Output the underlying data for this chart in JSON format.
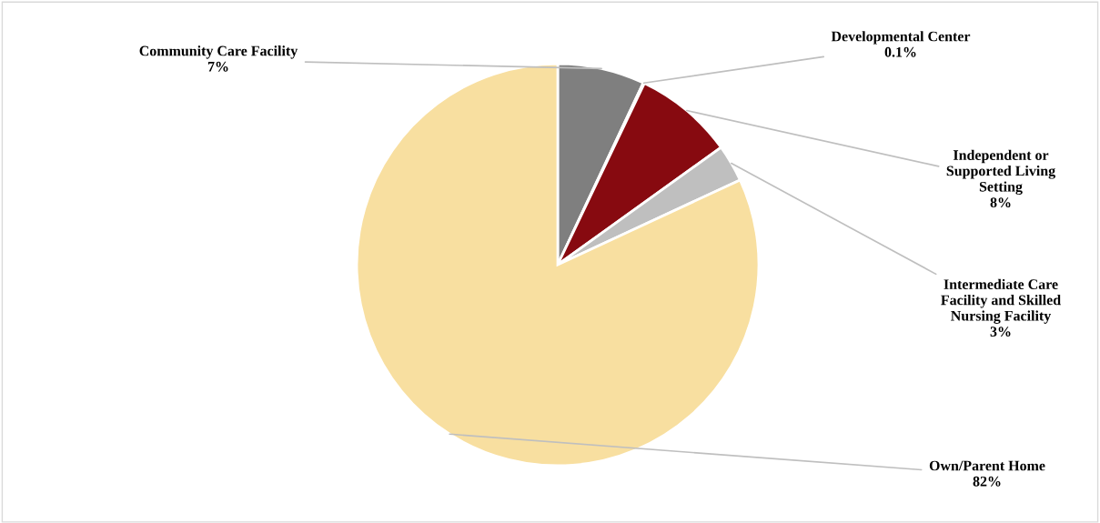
{
  "chart_data": {
    "type": "pie",
    "categories": [
      "Community Care Facility",
      "Developmental Center",
      "Independent or Supported Living Setting",
      "Intermediate Care Facility and Skilled Nursing Facility",
      "Own/Parent Home"
    ],
    "values": [
      7,
      0.1,
      8,
      3,
      82
    ],
    "colors": [
      "#7f7f7f",
      "#404040",
      "#870a10",
      "#bfbfbf",
      "#f8dfa0"
    ],
    "value_labels": [
      "7%",
      "0.1%",
      "8%",
      "3%",
      "82%"
    ]
  }
}
